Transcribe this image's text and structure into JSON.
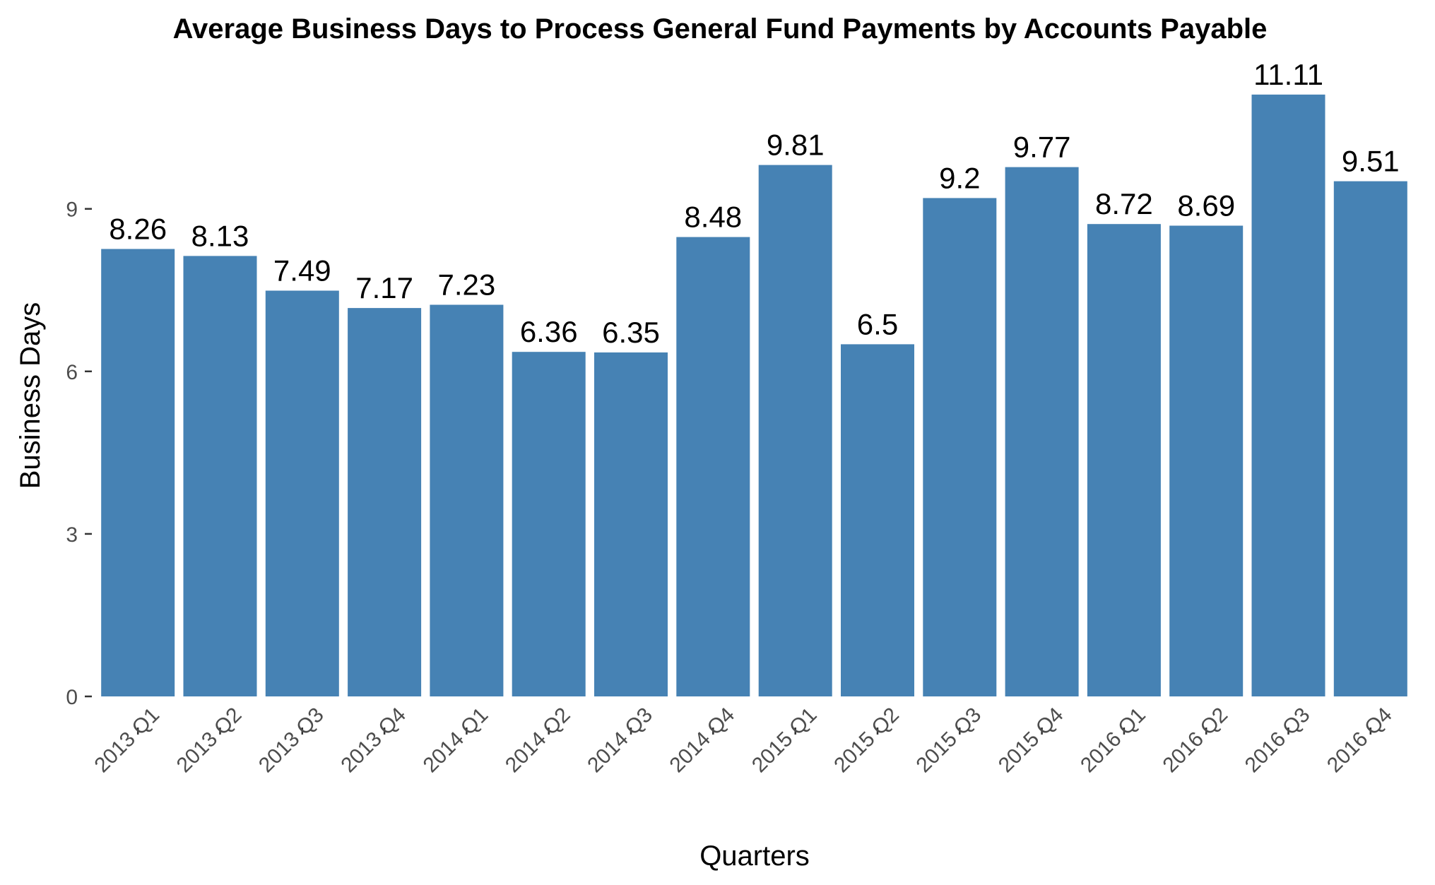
{
  "chart_data": {
    "type": "bar",
    "title": "Average Business Days to Process General Fund Payments by Accounts Payable",
    "xlabel": "Quarters",
    "ylabel": "Business Days",
    "categories": [
      "2013 Q1",
      "2013 Q2",
      "2013 Q3",
      "2013 Q4",
      "2014 Q1",
      "2014 Q2",
      "2014 Q3",
      "2014 Q4",
      "2015 Q1",
      "2015 Q2",
      "2015 Q3",
      "2015 Q4",
      "2016 Q1",
      "2016 Q2",
      "2016 Q3",
      "2016 Q4"
    ],
    "values": [
      8.26,
      8.13,
      7.49,
      7.17,
      7.23,
      6.36,
      6.35,
      8.48,
      9.81,
      6.5,
      9.2,
      9.77,
      8.72,
      8.69,
      11.11,
      9.51
    ],
    "value_labels": [
      "8.26",
      "8.13",
      "7.49",
      "7.17",
      "7.23",
      "6.36",
      "6.35",
      "8.48",
      "9.81",
      "6.5",
      "9.2",
      "9.77",
      "8.72",
      "8.69",
      "11.11",
      "9.51"
    ],
    "yticks": [
      0,
      3,
      6,
      9
    ],
    "ytick_labels": [
      "0",
      "3",
      "6",
      "9"
    ],
    "ylim": [
      0,
      11.11
    ],
    "grid": false,
    "legend": "none",
    "colors": {
      "bar": "#4682B4",
      "tick_text": "#4d4d4d",
      "text": "#000000"
    }
  }
}
